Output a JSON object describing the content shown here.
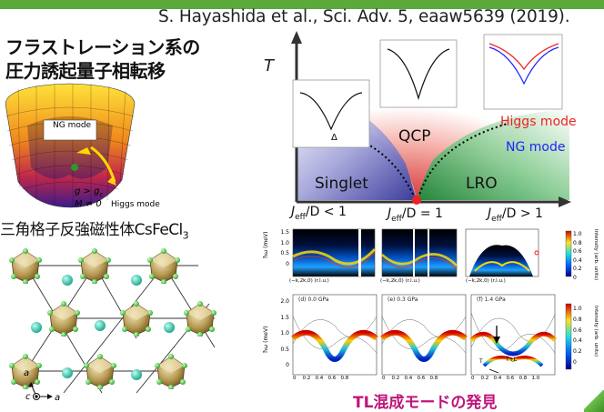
{
  "citation": "S. Hayashida  et al., Sci. Adv. 5, eaaw5639 (2019).",
  "title": {
    "line1": "フラストレーション系の",
    "line2": "圧力誘起量子相転移"
  },
  "mexican_hat": {
    "mode_box_label": "NG mode",
    "condition1": "g > g",
    "condition1_sub": "c",
    "condition2": "M ≠ 0",
    "higgs_label": "Higgs mode"
  },
  "lattice": {
    "title_main": "三角格子反強磁性体CsFeCl",
    "title_sub": "3",
    "axis_a": "a",
    "axis_c": "c"
  },
  "phase_diagram": {
    "y_axis": "T",
    "qcp": "QCP",
    "singlet": "Singlet",
    "lro": "LRO",
    "delta": "Δ",
    "higgs_mode": "Higgs mode",
    "ng_mode": "NG mode",
    "ratio_lt": "J",
    "ratio_sub": "eff",
    "ratio_lt_text": "/D < 1",
    "ratio_eq_text": "/D = 1",
    "ratio_gt_text": "/D > 1"
  },
  "spectra": {
    "ylabel": "ħω (meV)",
    "xlabel": "(−k,2k,0) (r.l.u.)",
    "colorbar_label": "Intensity (arb. units)",
    "colorbar_ticks": [
      "1.0",
      "0.8",
      "0.6",
      "0.4",
      "0.2",
      "0"
    ],
    "top_yticks": [
      "1.5",
      "1.0",
      "0.5",
      "0"
    ],
    "bottom_yticks": [
      "2.0",
      "1.5",
      "1.0",
      "0.5",
      "0"
    ],
    "xticks": [
      "0",
      "0.2",
      "0.4",
      "0.6",
      "0.8",
      "1.0"
    ],
    "panel_d": "(d) 0.0 GPa",
    "panel_e": "(e) 0.3 GPa",
    "panel_f": "(f) 1.4 GPa",
    "t_label": "T",
    "tl_label": "T+L"
  },
  "bottom_caption": "TL混成モードの発見",
  "colors": {
    "accent_green": "#5aa93a",
    "qcp_red": "#d8232a",
    "singlet_blue": "#3f3fa0",
    "lro_green": "#1c8a3c",
    "caption_magenta": "#c0157b"
  }
}
